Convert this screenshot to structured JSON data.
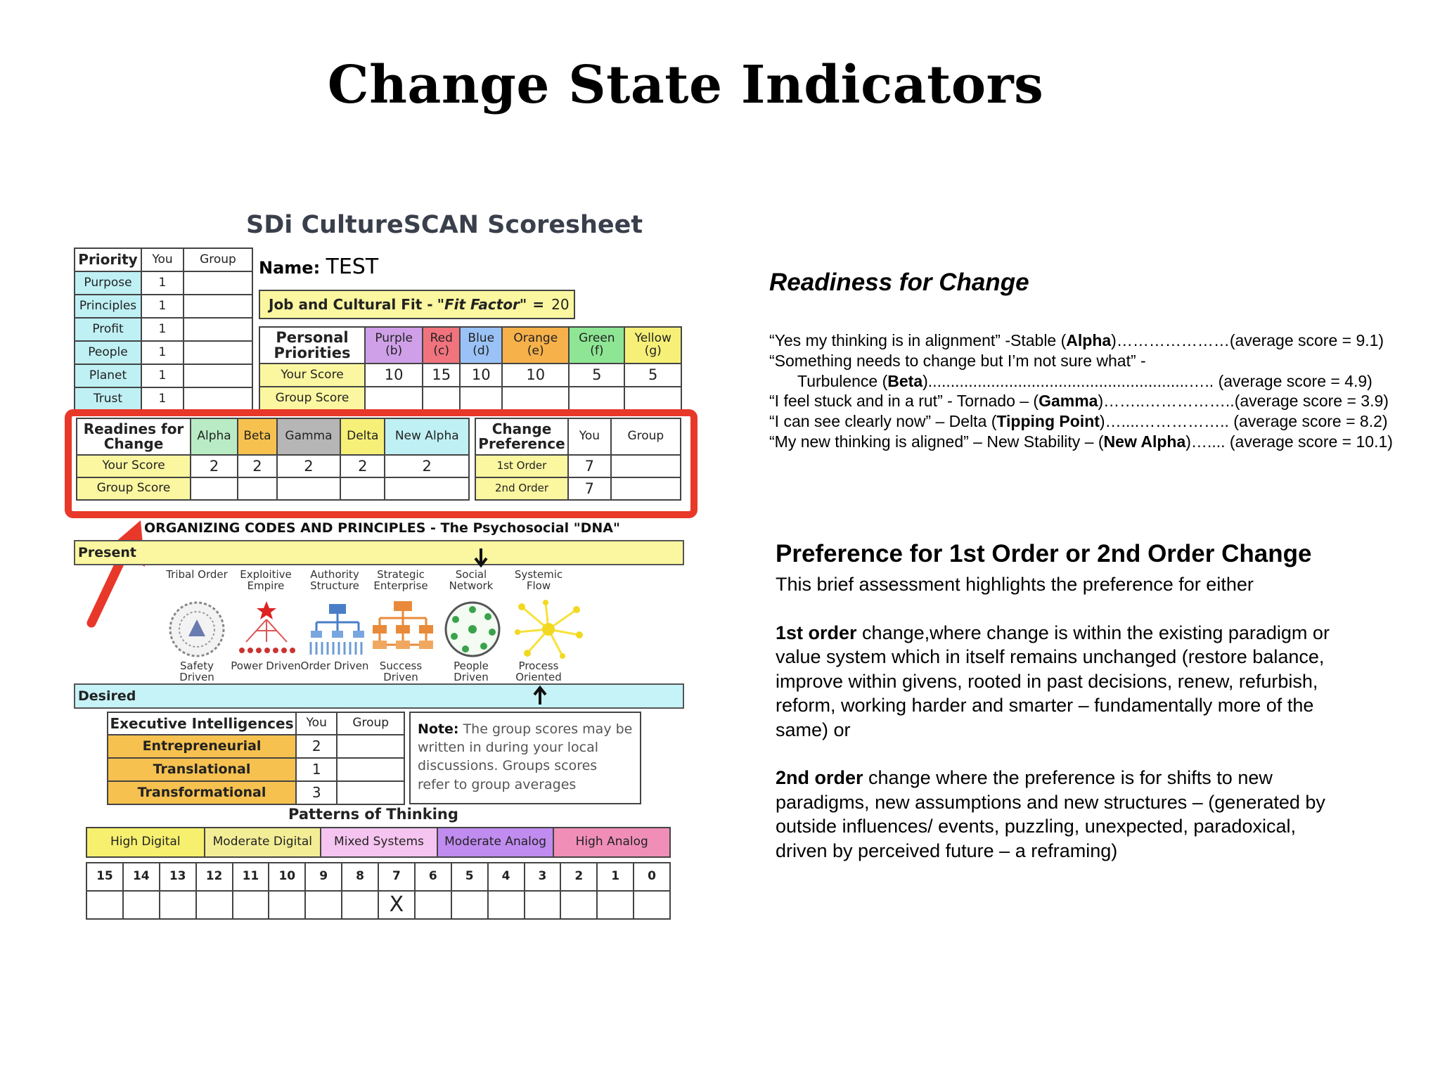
{
  "slide_title": "Change State Indicators",
  "scoresheet": {
    "title": "SDi CultureSCAN Scoresheet",
    "name_label": "Name:",
    "name_value": "TEST",
    "fit": {
      "label": "Job and Cultural Fit -",
      "quote": "\"Fit Factor\"",
      "equals": "=",
      "value": "20"
    },
    "priority": {
      "headers": [
        "Priority",
        "You",
        "Group"
      ],
      "rows": [
        {
          "label": "Purpose",
          "you": "1",
          "group": ""
        },
        {
          "label": "Principles",
          "you": "1",
          "group": ""
        },
        {
          "label": "Profit",
          "you": "1",
          "group": ""
        },
        {
          "label": "People",
          "you": "1",
          "group": ""
        },
        {
          "label": "Planet",
          "you": "1",
          "group": ""
        },
        {
          "label": "Trust",
          "you": "1",
          "group": ""
        }
      ]
    },
    "personal": {
      "title": "Personal Priorities",
      "columns": [
        {
          "name": "Purple",
          "code": "(b)",
          "color": "#cfa0e8"
        },
        {
          "name": "Red",
          "code": "(c)",
          "color": "#f0737d"
        },
        {
          "name": "Blue",
          "code": "(d)",
          "color": "#9bc2f6"
        },
        {
          "name": "Orange",
          "code": "(e)",
          "color": "#f6b14a"
        },
        {
          "name": "Green",
          "code": "(f)",
          "color": "#8ee694"
        },
        {
          "name": "Yellow",
          "code": "(g)",
          "color": "#f6f078"
        }
      ],
      "your_score_label": "Your Score",
      "your_scores": [
        "10",
        "15",
        "10",
        "10",
        "5",
        "5"
      ],
      "group_score_label": "Group Score",
      "group_scores": [
        "",
        "",
        "",
        "",
        "",
        ""
      ]
    },
    "readiness": {
      "title": "Readines for Change",
      "columns": [
        "Alpha",
        "Beta",
        "Gamma",
        "Delta",
        "New Alpha"
      ],
      "your_score_label": "Your Score",
      "your_scores": [
        "2",
        "2",
        "2",
        "2",
        "2"
      ],
      "group_score_label": "Group Score",
      "group_scores": [
        "",
        "",
        "",
        "",
        ""
      ]
    },
    "change_pref": {
      "title": "Change Preference",
      "headers": [
        "You",
        "Group"
      ],
      "rows": [
        {
          "label": "1st Order",
          "you": "7",
          "group": ""
        },
        {
          "label": "2nd Order",
          "you": "7",
          "group": ""
        }
      ]
    },
    "org_title": "ORGANIZING CODES AND PRINCIPLES - The Psychosocial \"DNA\"",
    "present_label": "Present",
    "desired_label": "Desired",
    "value_systems": [
      {
        "top": "Tribal Order",
        "bottom": "Safety Driven",
        "icon": "tribal-circle-icon"
      },
      {
        "top": "Exploitive Empire",
        "bottom": "Power Driven",
        "icon": "empire-pyramid-icon"
      },
      {
        "top": "Authority Structure",
        "bottom": "Order Driven",
        "icon": "hierarchy-icon"
      },
      {
        "top": "Strategic Enterprise",
        "bottom": "Success Driven",
        "icon": "network-org-icon"
      },
      {
        "top": "Social Network",
        "bottom": "People Driven",
        "icon": "social-circle-icon"
      },
      {
        "top": "Systemic Flow",
        "bottom": "Process Oriented",
        "icon": "flow-burst-icon"
      }
    ],
    "exec": {
      "headers": [
        "Executive Intelligences",
        "You",
        "Group"
      ],
      "rows": [
        {
          "label": "Entrepreneurial",
          "you": "2",
          "group": ""
        },
        {
          "label": "Translational",
          "you": "1",
          "group": ""
        },
        {
          "label": "Transformational",
          "you": "3",
          "group": ""
        }
      ]
    },
    "note": {
      "label": "Note:",
      "text": "The group scores may be written in during your local discussions. Groups scores refer to group averages"
    },
    "patterns": {
      "title": "Patterns of Thinking",
      "categories": [
        {
          "label": "High Digital",
          "color": "#f6f06e"
        },
        {
          "label": "Moderate Digital",
          "color": "#f3ee96"
        },
        {
          "label": "Mixed Systems",
          "color": "#f6c4f0"
        },
        {
          "label": "Moderate Analog",
          "color": "#c08cf0"
        },
        {
          "label": "High Analog",
          "color": "#f08eb8"
        }
      ],
      "scale": [
        "15",
        "14",
        "13",
        "12",
        "11",
        "10",
        "9",
        "8",
        "7",
        "6",
        "5",
        "4",
        "3",
        "2",
        "1",
        "0"
      ],
      "selected_value": "7",
      "selected_mark": "X"
    }
  },
  "readiness_section": {
    "title": "Readiness for Change",
    "lines": [
      {
        "pre": "“Yes my thinking is in alignment” -Stable (",
        "bold": "Alpha",
        "post": ")…………………(average score = 9.1)"
      },
      {
        "pre": "“Something needs to change but I’m not sure what” -",
        "bold": "",
        "post": ""
      },
      {
        "pre": "Turbulence (",
        "bold": "Beta",
        "post": ")..........................................................….. (average score = 4.9)",
        "indent": true
      },
      {
        "pre": "“I feel stuck and in a rut” - Tornado – (",
        "bold": "Gamma",
        "post": ")……..……………..(average score = 3.9)"
      },
      {
        "pre": "“I can see clearly now” – Delta (",
        "bold": "Tipping Point",
        "post": ")…....…………….. (average score = 8.2)"
      },
      {
        "pre": "“My new thinking is aligned” – New Stability – (",
        "bold": "New Alpha",
        "post": ")….... (average score = 10.1)"
      }
    ]
  },
  "preference_section": {
    "title": "Preference for 1st Order or 2nd Order Change",
    "intro": "This brief assessment highlights the preference for either",
    "first_bold": "1st order",
    "first_text": " change,where change is within the existing paradigm or value system which in itself remains unchanged (restore balance, improve within givens, rooted in past decisions, renew, refurbish, reform, working harder and smarter – fundamentally more of the same) or",
    "second_bold": "2nd order",
    "second_text": " change where the preference is for shifts to new paradigms, new assumptions and new structures – (generated by outside influences/ events, puzzling, unexpected, paradoxical, driven by perceived future – a reframing)"
  }
}
